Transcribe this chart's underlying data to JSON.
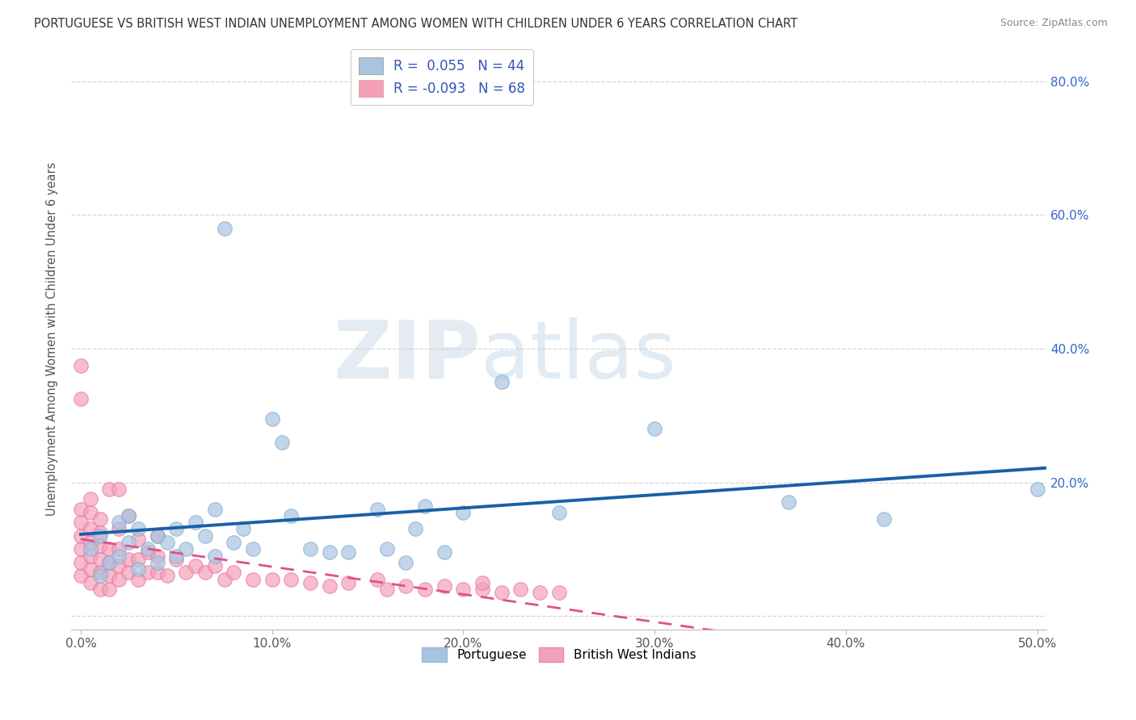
{
  "title": "PORTUGUESE VS BRITISH WEST INDIAN UNEMPLOYMENT AMONG WOMEN WITH CHILDREN UNDER 6 YEARS CORRELATION CHART",
  "source": "Source: ZipAtlas.com",
  "ylabel": "Unemployment Among Women with Children Under 6 years",
  "xlim": [
    -0.005,
    0.505
  ],
  "ylim": [
    -0.02,
    0.85
  ],
  "xtick_vals": [
    0.0,
    0.1,
    0.2,
    0.3,
    0.4,
    0.5
  ],
  "ytick_vals": [
    0.0,
    0.2,
    0.4,
    0.6,
    0.8
  ],
  "xtick_labels": [
    "0.0%",
    "10.0%",
    "20.0%",
    "30.0%",
    "40.0%",
    "50.0%"
  ],
  "ytick_labels_left": [
    "",
    "",
    "",
    "",
    ""
  ],
  "ytick_labels_right": [
    "",
    "20.0%",
    "40.0%",
    "60.0%",
    "80.0%"
  ],
  "portuguese_color": "#a8c4e0",
  "portuguese_edge_color": "#7aaad0",
  "bwi_color": "#f4a0b8",
  "bwi_edge_color": "#e870a0",
  "portuguese_line_color": "#1a5fa8",
  "bwi_line_color": "#e0508a",
  "background_color": "#ffffff",
  "grid_color": "#cccccc",
  "legend_r_portuguese": "0.055",
  "legend_n_portuguese": "44",
  "legend_r_bwi": "-0.093",
  "legend_n_bwi": "68",
  "port_x": [
    0.005,
    0.01,
    0.01,
    0.015,
    0.02,
    0.02,
    0.025,
    0.025,
    0.03,
    0.03,
    0.035,
    0.04,
    0.04,
    0.045,
    0.05,
    0.05,
    0.055,
    0.06,
    0.065,
    0.07,
    0.07,
    0.075,
    0.08,
    0.085,
    0.09,
    0.1,
    0.105,
    0.11,
    0.12,
    0.13,
    0.14,
    0.155,
    0.16,
    0.17,
    0.175,
    0.18,
    0.19,
    0.2,
    0.22,
    0.25,
    0.3,
    0.37,
    0.42,
    0.5
  ],
  "port_y": [
    0.1,
    0.06,
    0.12,
    0.08,
    0.09,
    0.14,
    0.11,
    0.15,
    0.07,
    0.13,
    0.1,
    0.12,
    0.08,
    0.11,
    0.09,
    0.13,
    0.1,
    0.14,
    0.12,
    0.09,
    0.16,
    0.58,
    0.11,
    0.13,
    0.1,
    0.295,
    0.26,
    0.15,
    0.1,
    0.095,
    0.095,
    0.16,
    0.1,
    0.08,
    0.13,
    0.165,
    0.095,
    0.155,
    0.35,
    0.155,
    0.28,
    0.17,
    0.145,
    0.19
  ],
  "bwi_x": [
    0.0,
    0.0,
    0.0,
    0.0,
    0.0,
    0.0,
    0.005,
    0.005,
    0.005,
    0.005,
    0.005,
    0.005,
    0.005,
    0.01,
    0.01,
    0.01,
    0.01,
    0.01,
    0.01,
    0.015,
    0.015,
    0.015,
    0.015,
    0.015,
    0.02,
    0.02,
    0.02,
    0.02,
    0.02,
    0.025,
    0.025,
    0.025,
    0.03,
    0.03,
    0.03,
    0.035,
    0.035,
    0.04,
    0.04,
    0.04,
    0.045,
    0.05,
    0.055,
    0.06,
    0.065,
    0.07,
    0.075,
    0.08,
    0.09,
    0.1,
    0.11,
    0.12,
    0.13,
    0.14,
    0.155,
    0.16,
    0.17,
    0.18,
    0.19,
    0.2,
    0.21,
    0.21,
    0.22,
    0.23,
    0.24,
    0.25,
    0.0,
    0.0
  ],
  "bwi_y": [
    0.06,
    0.08,
    0.1,
    0.12,
    0.14,
    0.16,
    0.05,
    0.07,
    0.09,
    0.11,
    0.13,
    0.155,
    0.175,
    0.04,
    0.065,
    0.085,
    0.105,
    0.125,
    0.145,
    0.04,
    0.06,
    0.08,
    0.1,
    0.19,
    0.055,
    0.075,
    0.1,
    0.13,
    0.19,
    0.065,
    0.085,
    0.15,
    0.055,
    0.085,
    0.115,
    0.065,
    0.095,
    0.065,
    0.09,
    0.12,
    0.06,
    0.085,
    0.065,
    0.075,
    0.065,
    0.075,
    0.055,
    0.065,
    0.055,
    0.055,
    0.055,
    0.05,
    0.045,
    0.05,
    0.055,
    0.04,
    0.045,
    0.04,
    0.045,
    0.04,
    0.04,
    0.05,
    0.035,
    0.04,
    0.035,
    0.035,
    0.375,
    0.325
  ]
}
